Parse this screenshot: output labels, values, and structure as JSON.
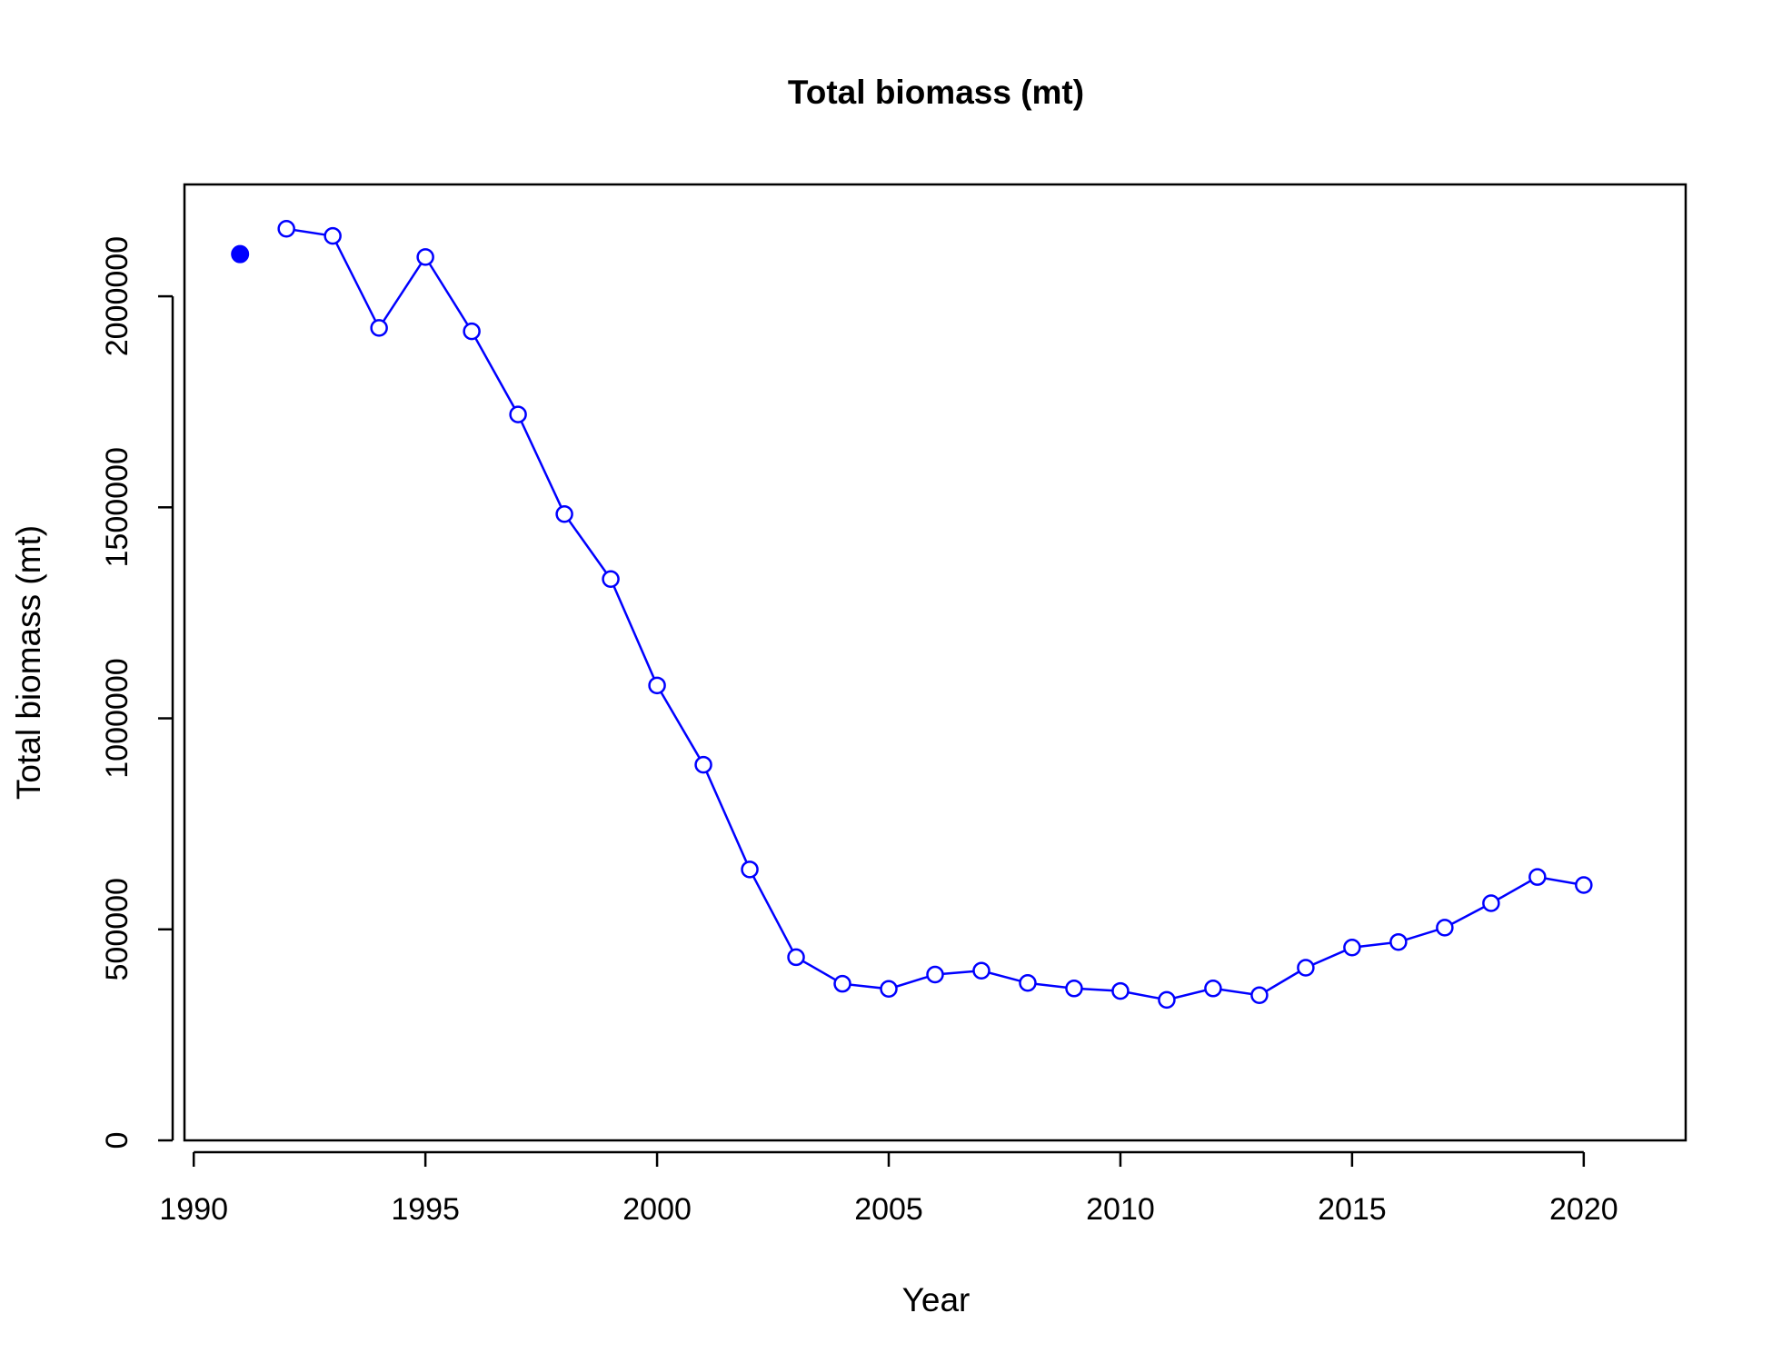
{
  "chart_data": {
    "type": "line",
    "title": "Total biomass (mt)",
    "xlabel": "Year",
    "ylabel": "Total biomass (mt)",
    "xlim": [
      1989.8,
      2022.2
    ],
    "ylim": [
      0,
      2265000
    ],
    "x_ticks": [
      "1990",
      "1995",
      "2000",
      "2005",
      "2010",
      "2015",
      "2020"
    ],
    "y_ticks": [
      "0",
      "500000",
      "1000000",
      "1500000",
      "2000000"
    ],
    "grid": false,
    "legend": "none",
    "colors": {
      "series": "#0000ff",
      "axes": "#000000"
    },
    "initial_point": {
      "x": 1991,
      "y": 2100000,
      "marker": "filled-circle"
    },
    "series": [
      {
        "marker": "open-circle",
        "x": [
          1992,
          1993,
          1994,
          1995,
          1996,
          1997,
          1998,
          1999,
          2000,
          2001,
          2002,
          2003,
          2004,
          2005,
          2006,
          2007,
          2008,
          2009,
          2010,
          2011,
          2012,
          2013,
          2014,
          2015,
          2016,
          2017,
          2018,
          2019,
          2020
        ],
        "y": [
          2160000,
          2143000,
          1925000,
          2093000,
          1917000,
          1720000,
          1484000,
          1330000,
          1078000,
          890000,
          642000,
          434000,
          371000,
          359000,
          393000,
          402000,
          373000,
          360000,
          354000,
          333000,
          360000,
          344000,
          409000,
          457000,
          470000,
          504000,
          562000,
          624000,
          605000
        ]
      }
    ]
  }
}
